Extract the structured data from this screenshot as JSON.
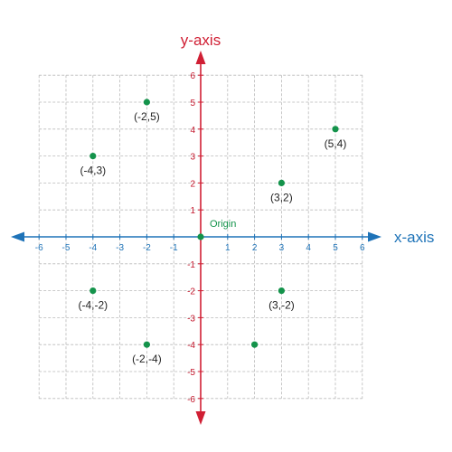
{
  "chart_data": {
    "type": "scatter",
    "xlabel": "x-axis",
    "ylabel": "y-axis",
    "xlim": [
      -6,
      6
    ],
    "ylim": [
      -6,
      6
    ],
    "x_ticks": [
      -6,
      -5,
      -4,
      -3,
      -2,
      -1,
      1,
      2,
      3,
      4,
      5,
      6
    ],
    "y_ticks": [
      -6,
      -5,
      -4,
      -3,
      -2,
      -1,
      1,
      2,
      3,
      4,
      5,
      6
    ],
    "grid": true,
    "points": [
      {
        "x": -2,
        "y": 5,
        "label": "(-2,5)"
      },
      {
        "x": 5,
        "y": 4,
        "label": "(5,4)"
      },
      {
        "x": -4,
        "y": 3,
        "label": "(-4,3)"
      },
      {
        "x": 3,
        "y": 2,
        "label": "(3,2)"
      },
      {
        "x": 0,
        "y": 0,
        "label": "Origin"
      },
      {
        "x": -4,
        "y": -2,
        "label": "(-4,-2)"
      },
      {
        "x": 3,
        "y": -2,
        "label": "(3,-2)"
      },
      {
        "x": -2,
        "y": -4,
        "label": "(-2,-4)"
      },
      {
        "x": 2,
        "y": -4,
        "label": ""
      }
    ],
    "colors": {
      "x_axis": "#1e73b8",
      "y_axis": "#d01f34",
      "point": "#14934b",
      "origin_label": "#14934b",
      "grid": "#b9b9b9"
    }
  }
}
